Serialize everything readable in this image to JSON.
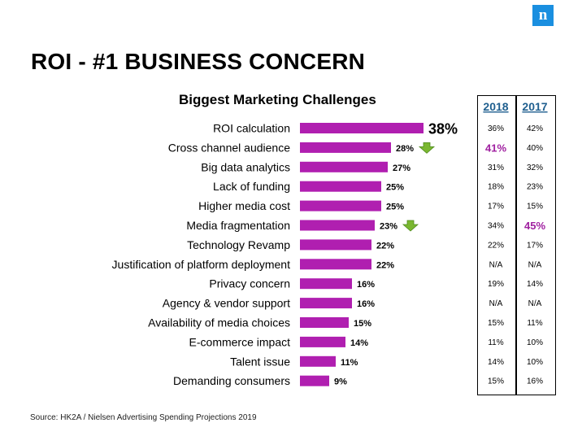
{
  "header": {
    "title": "ROI - #1 BUSINESS CONCERN",
    "logo_letter": "n"
  },
  "footer": {
    "source": "Source: HK2A / Nielsen Advertising Spending Projections 2019"
  },
  "colors": {
    "bar": "#b01fb0",
    "highlight": "#a020a0",
    "arrow": "#7ab730",
    "year_header": "#1f5f8f"
  },
  "chart_data": {
    "type": "bar",
    "orientation": "horizontal",
    "title": "Biggest Marketing Challenges",
    "categories": [
      "ROI calculation",
      "Cross channel audience",
      "Big data analytics",
      "Lack of funding",
      "Higher media cost",
      "Media fragmentation",
      "Technology Revamp",
      "Justification of platform deployment",
      "Privacy concern",
      "Agency & vendor support",
      "Availability of media choices",
      "E-commerce impact",
      "Talent issue",
      "Demanding consumers"
    ],
    "values": [
      38,
      28,
      27,
      25,
      25,
      23,
      22,
      22,
      16,
      16,
      15,
      14,
      11,
      9
    ],
    "value_labels": [
      "38%",
      "28%",
      "27%",
      "25%",
      "25%",
      "23%",
      "22%",
      "22%",
      "16%",
      "16%",
      "15%",
      "14%",
      "11%",
      "9%"
    ],
    "down_arrows": [
      1,
      5
    ],
    "comparison_table": {
      "columns": [
        "2018",
        "2017"
      ],
      "rows": [
        [
          "36%",
          "42%"
        ],
        [
          "41%",
          "40%"
        ],
        [
          "31%",
          "32%"
        ],
        [
          "18%",
          "23%"
        ],
        [
          "17%",
          "15%"
        ],
        [
          "34%",
          "45%"
        ],
        [
          "22%",
          "17%"
        ],
        [
          "N/A",
          "N/A"
        ],
        [
          "19%",
          "14%"
        ],
        [
          "N/A",
          "N/A"
        ],
        [
          "15%",
          "11%"
        ],
        [
          "11%",
          "10%"
        ],
        [
          "14%",
          "10%"
        ],
        [
          "15%",
          "16%"
        ]
      ],
      "highlighted_cells": [
        [
          1,
          0
        ],
        [
          5,
          1
        ]
      ]
    }
  }
}
